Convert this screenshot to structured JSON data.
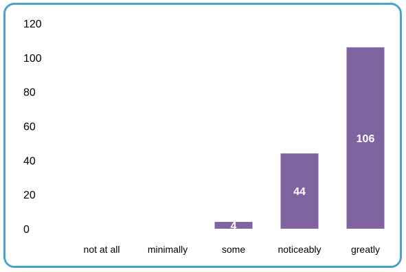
{
  "chart_data": {
    "type": "bar",
    "categories": [
      "not at all",
      "minimally",
      "some",
      "noticeably",
      "greatly"
    ],
    "values": [
      0,
      0,
      4,
      44,
      106
    ],
    "data_labels": [
      "",
      "",
      "4",
      "44",
      "106"
    ],
    "y_ticks": [
      "0",
      "20",
      "40",
      "60",
      "80",
      "100",
      "120"
    ],
    "ylim": [
      0,
      120
    ],
    "grid": false,
    "legend": "none",
    "colors": {
      "bar": "#8064a2",
      "frame_border": "#4aa3c8",
      "data_label": "#ffffff"
    }
  }
}
